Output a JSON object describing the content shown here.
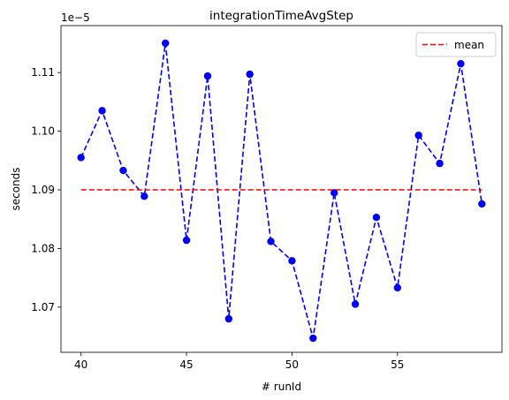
{
  "chart_data": {
    "type": "line",
    "title": "integrationTimeAvgStep",
    "xlabel": "# runId",
    "ylabel": "seconds",
    "offset_text": "1e−5",
    "xlim": [
      39.05,
      59.95
    ],
    "ylim": [
      10.623,
      11.18
    ],
    "x_ticks": [
      40,
      45,
      50,
      55
    ],
    "y_ticks": [
      10.7,
      10.8,
      10.9,
      11.0,
      11.1
    ],
    "y_tick_labels": [
      "1.07",
      "1.08",
      "1.09",
      "1.10",
      "1.11"
    ],
    "grid": false,
    "legend_position": "top-right",
    "series": [
      {
        "style": "dashed-with-markers",
        "color": "#0000ff",
        "x": [
          40,
          41,
          42,
          43,
          44,
          45,
          46,
          47,
          48,
          49,
          50,
          51,
          52,
          53,
          54,
          55,
          56,
          57,
          58,
          59
        ],
        "values": [
          10.955,
          11.035,
          10.933,
          10.889,
          11.15,
          10.814,
          11.094,
          10.68,
          11.097,
          10.812,
          10.779,
          10.647,
          10.895,
          10.705,
          10.853,
          10.733,
          10.993,
          10.945,
          11.115,
          10.876
        ]
      },
      {
        "name": "mean",
        "style": "dashed",
        "color": "#ff0000",
        "x": [
          40,
          59
        ],
        "values": [
          10.9,
          10.9
        ]
      }
    ]
  }
}
